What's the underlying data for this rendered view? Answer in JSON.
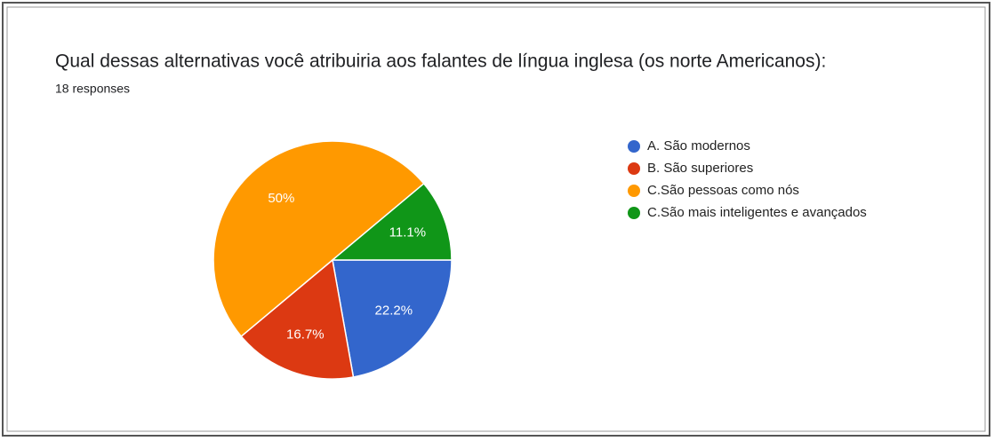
{
  "chart_data": {
    "type": "pie",
    "title": "Qual dessas alternativas você atribuiria aos falantes de língua inglesa (os norte Americanos):",
    "subtitle": "18 responses",
    "categories": [
      "A. São modernos",
      "B. São superiores",
      "C.São pessoas como nós",
      "C.São mais inteligentes e avançados"
    ],
    "values": [
      22.2,
      16.7,
      50,
      11.1
    ],
    "value_labels": [
      "22.2%",
      "16.7%",
      "50%",
      "11.1%"
    ],
    "colors": [
      "#3366cc",
      "#dc3912",
      "#ff9900",
      "#109618"
    ]
  }
}
